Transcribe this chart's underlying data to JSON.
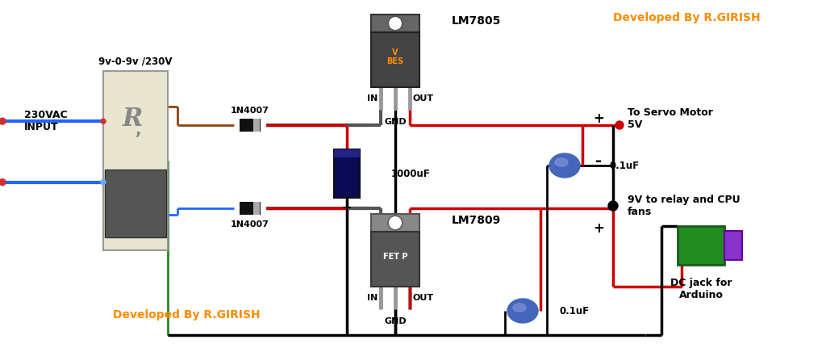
{
  "background_color": "#ffffff",
  "orange_color": "#FF8C00",
  "transformer_label": "9v-0-9v /230V",
  "input_label": "230VAC\nINPUT",
  "diode1_label": "1N4007",
  "diode2_label": "1N4007",
  "reg1_label": "LM7805",
  "reg2_label": "LM7809",
  "cap1_label": "1000uF",
  "cap2_label": "0.1uF",
  "cap3_label": "0.1uF",
  "output1_label": "To Servo Motor\n5V",
  "output2_label": "9V to relay and CPU\nfans",
  "output3_label": "DC jack for\nArduino",
  "in_label": "IN",
  "out_label": "OUT",
  "gnd_label": "GND",
  "developed_top": "Developed By R.GIRISH",
  "developed_bot": "Developed By R.GIRISH",
  "vreg_text": "V\nBES",
  "fetp_text": "FET P",
  "plus": "+",
  "minus": "-"
}
